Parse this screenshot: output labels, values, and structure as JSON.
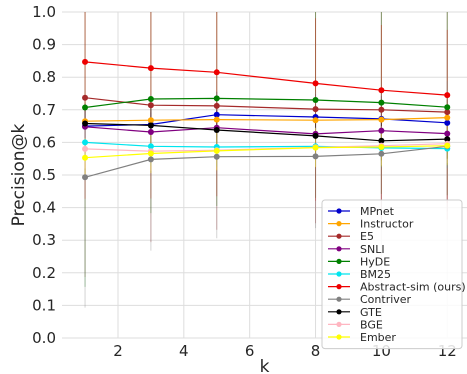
{
  "chart_data": {
    "type": "line",
    "title": "",
    "xlabel": "k",
    "ylabel": "Precision@k",
    "xlim": [
      0.3,
      12.6
    ],
    "ylim": [
      0.0,
      1.0
    ],
    "x_ticks": [
      2,
      4,
      6,
      8,
      10,
      12
    ],
    "y_ticks": [
      0.0,
      0.1,
      0.2,
      0.3,
      0.4,
      0.5,
      0.6,
      0.7,
      0.8,
      0.9,
      1.0
    ],
    "grid": true,
    "legend_position": "bottom-right",
    "x": [
      1,
      3,
      5,
      8,
      10,
      12
    ],
    "series": [
      {
        "name": "MPnet",
        "color": "#0000cc",
        "values": [
          0.65,
          0.655,
          0.685,
          0.678,
          0.672,
          0.66
        ],
        "err_low": [
          0.07,
          0.07,
          0.07,
          0.07,
          0.07,
          0.07
        ],
        "err_high": [
          0.07,
          0.07,
          0.07,
          0.07,
          0.07,
          0.07
        ]
      },
      {
        "name": "Instructor",
        "color": "#ffa500",
        "values": [
          0.665,
          0.668,
          0.67,
          0.668,
          0.67,
          0.676
        ],
        "err_low": [
          0.06,
          0.06,
          0.06,
          0.06,
          0.06,
          0.06
        ],
        "err_high": [
          0.06,
          0.06,
          0.06,
          0.06,
          0.06,
          0.06
        ]
      },
      {
        "name": "E5",
        "color": "#a52a2a",
        "values": [
          0.737,
          0.714,
          0.712,
          0.702,
          0.7,
          0.693
        ],
        "err_low": [
          0.55,
          0.42,
          0.38,
          0.35,
          0.35,
          0.33
        ],
        "err_high": [
          0.4,
          0.4,
          0.4,
          0.4,
          0.4,
          0.4
        ]
      },
      {
        "name": "SNLI",
        "color": "#800080",
        "values": [
          0.648,
          0.632,
          0.645,
          0.626,
          0.636,
          0.627
        ],
        "err_low": [
          0.06,
          0.06,
          0.06,
          0.06,
          0.06,
          0.06
        ],
        "err_high": [
          0.06,
          0.06,
          0.06,
          0.06,
          0.06,
          0.06
        ]
      },
      {
        "name": "HyDE",
        "color": "#008000",
        "values": [
          0.707,
          0.733,
          0.735,
          0.73,
          0.722,
          0.708
        ],
        "err_low": [
          0.55,
          0.35,
          0.33,
          0.3,
          0.28,
          0.27
        ],
        "err_high": [
          0.35,
          0.35,
          0.35,
          0.35,
          0.35,
          0.35
        ]
      },
      {
        "name": "BM25",
        "color": "#00e5ee",
        "values": [
          0.6,
          0.588,
          0.586,
          0.588,
          0.583,
          0.581
        ],
        "err_low": [
          0.06,
          0.06,
          0.06,
          0.06,
          0.06,
          0.06
        ],
        "err_high": [
          0.06,
          0.06,
          0.06,
          0.06,
          0.06,
          0.06
        ]
      },
      {
        "name": "Abstract-sim (ours)",
        "color": "#ee0000",
        "values": [
          0.847,
          0.828,
          0.815,
          0.781,
          0.76,
          0.745
        ],
        "err_low": [
          0.42,
          0.4,
          0.38,
          0.36,
          0.34,
          0.33
        ],
        "err_high": [
          0.2,
          0.2,
          0.2,
          0.2,
          0.2,
          0.2
        ]
      },
      {
        "name": "Contriver",
        "color": "#808080",
        "values": [
          0.493,
          0.548,
          0.556,
          0.557,
          0.565,
          0.588
        ],
        "err_low": [
          0.4,
          0.28,
          0.25,
          0.22,
          0.2,
          0.2
        ],
        "err_high": [
          0.2,
          0.2,
          0.2,
          0.2,
          0.2,
          0.2
        ]
      },
      {
        "name": "GTE",
        "color": "#000000",
        "values": [
          0.658,
          0.652,
          0.638,
          0.62,
          0.605,
          0.61
        ],
        "err_low": [
          0.06,
          0.06,
          0.06,
          0.06,
          0.06,
          0.06
        ],
        "err_high": [
          0.06,
          0.06,
          0.06,
          0.06,
          0.06,
          0.06
        ]
      },
      {
        "name": "BGE",
        "color": "#ffb6c1",
        "values": [
          0.58,
          0.573,
          0.576,
          0.585,
          0.59,
          0.596
        ],
        "err_low": [
          0.06,
          0.06,
          0.06,
          0.06,
          0.06,
          0.06
        ],
        "err_high": [
          0.06,
          0.06,
          0.06,
          0.06,
          0.06,
          0.06
        ]
      },
      {
        "name": "Ember",
        "color": "#ffff00",
        "values": [
          0.553,
          0.566,
          0.574,
          0.584,
          0.586,
          0.59
        ],
        "err_low": [
          0.06,
          0.06,
          0.06,
          0.06,
          0.06,
          0.06
        ],
        "err_high": [
          0.06,
          0.06,
          0.06,
          0.06,
          0.06,
          0.06
        ]
      }
    ]
  }
}
